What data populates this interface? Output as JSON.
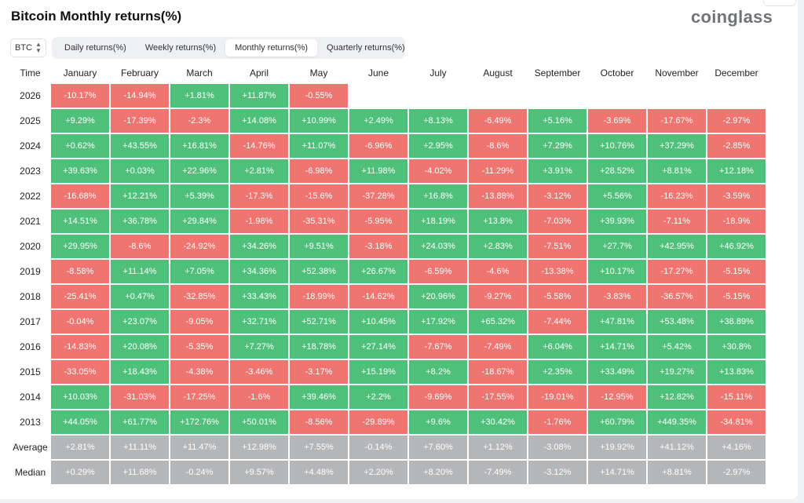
{
  "title": "Bitcoin Monthly returns(%)",
  "brand": "coinglass",
  "colors": {
    "positive": "#4fc07a",
    "negative": "#f0746f",
    "stat": "#b5b6b8"
  },
  "coin_select": {
    "value": "BTC",
    "icon": "chevron-up-down-icon"
  },
  "tabs": [
    {
      "label": "Daily returns(%)",
      "active": false
    },
    {
      "label": "Weekly returns(%)",
      "active": false
    },
    {
      "label": "Monthly returns(%)",
      "active": true
    },
    {
      "label": "Quarterly returns(%)",
      "active": false
    }
  ],
  "table": {
    "time_header": "Time",
    "months": [
      "January",
      "February",
      "March",
      "April",
      "May",
      "June",
      "July",
      "August",
      "September",
      "October",
      "November",
      "December"
    ],
    "rows": [
      {
        "label": "2026",
        "values": [
          "-10.17%",
          "-14.94%",
          "+1.81%",
          "+11.87%",
          "-0.55%",
          "",
          "",
          "",
          "",
          "",
          "",
          ""
        ]
      },
      {
        "label": "2025",
        "values": [
          "+9.29%",
          "-17.39%",
          "-2.3%",
          "+14.08%",
          "+10.99%",
          "+2.49%",
          "+8.13%",
          "-6.49%",
          "+5.16%",
          "-3.69%",
          "-17.67%",
          "-2.97%"
        ]
      },
      {
        "label": "2024",
        "values": [
          "+0.62%",
          "+43.55%",
          "+16.81%",
          "-14.76%",
          "+11.07%",
          "-6.96%",
          "+2.95%",
          "-8.6%",
          "+7.29%",
          "+10.76%",
          "+37.29%",
          "-2.85%"
        ]
      },
      {
        "label": "2023",
        "values": [
          "+39.63%",
          "+0.03%",
          "+22.96%",
          "+2.81%",
          "-6.98%",
          "+11.98%",
          "-4.02%",
          "-11.29%",
          "+3.91%",
          "+28.52%",
          "+8.81%",
          "+12.18%"
        ]
      },
      {
        "label": "2022",
        "values": [
          "-16.68%",
          "+12.21%",
          "+5.39%",
          "-17.3%",
          "-15.6%",
          "-37.28%",
          "+16.8%",
          "-13.88%",
          "-3.12%",
          "+5.56%",
          "-16.23%",
          "-3.59%"
        ]
      },
      {
        "label": "2021",
        "values": [
          "+14.51%",
          "+36.78%",
          "+29.84%",
          "-1.98%",
          "-35.31%",
          "-5.95%",
          "+18.19%",
          "+13.8%",
          "-7.03%",
          "+39.93%",
          "-7.11%",
          "-18.9%"
        ]
      },
      {
        "label": "2020",
        "values": [
          "+29.95%",
          "-8.6%",
          "-24.92%",
          "+34.26%",
          "+9.51%",
          "-3.18%",
          "+24.03%",
          "+2.83%",
          "-7.51%",
          "+27.7%",
          "+42.95%",
          "+46.92%"
        ]
      },
      {
        "label": "2019",
        "values": [
          "-8.58%",
          "+11.14%",
          "+7.05%",
          "+34.36%",
          "+52.38%",
          "+26.67%",
          "-6.59%",
          "-4.6%",
          "-13.38%",
          "+10.17%",
          "-17.27%",
          "-5.15%"
        ]
      },
      {
        "label": "2018",
        "values": [
          "-25.41%",
          "+0.47%",
          "-32.85%",
          "+33.43%",
          "-18.99%",
          "-14.62%",
          "+20.96%",
          "-9.27%",
          "-5.58%",
          "-3.83%",
          "-36.57%",
          "-5.15%"
        ]
      },
      {
        "label": "2017",
        "values": [
          "-0.04%",
          "+23.07%",
          "-9.05%",
          "+32.71%",
          "+52.71%",
          "+10.45%",
          "+17.92%",
          "+65.32%",
          "-7.44%",
          "+47.81%",
          "+53.48%",
          "+38.89%"
        ]
      },
      {
        "label": "2016",
        "values": [
          "-14.83%",
          "+20.08%",
          "-5.35%",
          "+7.27%",
          "+18.78%",
          "+27.14%",
          "-7.67%",
          "-7.49%",
          "+6.04%",
          "+14.71%",
          "+5.42%",
          "+30.8%"
        ]
      },
      {
        "label": "2015",
        "values": [
          "-33.05%",
          "+18.43%",
          "-4.38%",
          "-3.46%",
          "-3.17%",
          "+15.19%",
          "+8.2%",
          "-18.67%",
          "+2.35%",
          "+33.49%",
          "+19.27%",
          "+13.83%"
        ]
      },
      {
        "label": "2014",
        "values": [
          "+10.03%",
          "-31.03%",
          "-17.25%",
          "-1.6%",
          "+39.46%",
          "+2.2%",
          "-9.69%",
          "-17.55%",
          "-19.01%",
          "-12.95%",
          "+12.82%",
          "-15.11%"
        ]
      },
      {
        "label": "2013",
        "values": [
          "+44.05%",
          "+61.77%",
          "+172.76%",
          "+50.01%",
          "-8.56%",
          "-29.89%",
          "+9.6%",
          "+30.42%",
          "-1.76%",
          "+60.79%",
          "+449.35%",
          "-34.81%"
        ]
      }
    ],
    "stats": [
      {
        "label": "Average",
        "values": [
          "+2.81%",
          "+11.11%",
          "+11.47%",
          "+12.98%",
          "+7.55%",
          "-0.14%",
          "+7.60%",
          "+1.12%",
          "-3.08%",
          "+19.92%",
          "+41.12%",
          "+4.16%"
        ]
      },
      {
        "label": "Median",
        "values": [
          "+0.29%",
          "+11.68%",
          "-0.24%",
          "+9.57%",
          "+4.48%",
          "+2.20%",
          "+8.20%",
          "-7.49%",
          "-3.12%",
          "+14.71%",
          "+8.81%",
          "-2.97%"
        ]
      }
    ]
  }
}
